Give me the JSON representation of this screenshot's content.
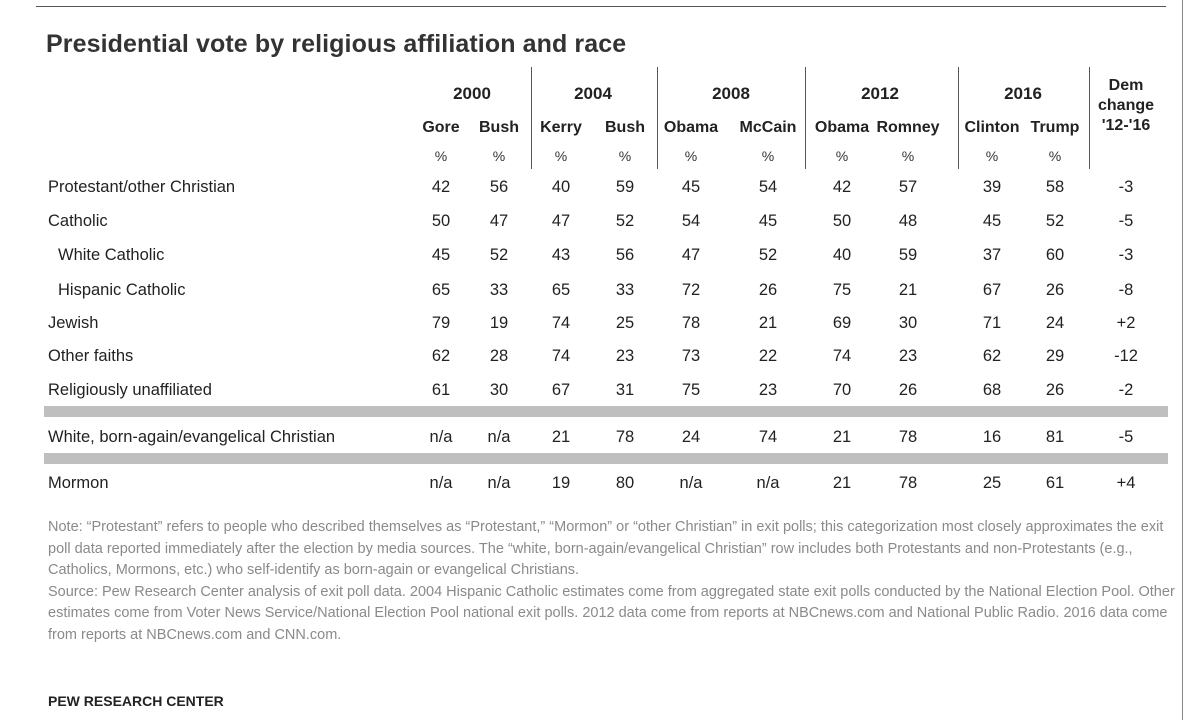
{
  "title": "Presidential vote by religious affiliation and race",
  "chart_data": {
    "type": "table",
    "title": "Presidential vote by religious affiliation and race",
    "years": [
      {
        "year": "2000",
        "candidates": [
          "Gore",
          "Bush"
        ]
      },
      {
        "year": "2004",
        "candidates": [
          "Kerry",
          "Bush"
        ]
      },
      {
        "year": "2008",
        "candidates": [
          "Obama",
          "McCain"
        ]
      },
      {
        "year": "2012",
        "candidates": [
          "Obama",
          "Romney"
        ]
      },
      {
        "year": "2016",
        "candidates": [
          "Clinton",
          "Trump"
        ]
      }
    ],
    "percent_label": "%",
    "change_header": [
      "Dem",
      "change",
      "'12-'16"
    ],
    "rows": [
      {
        "label": "Protestant/other Christian",
        "indent": false,
        "values": [
          "42",
          "56",
          "40",
          "59",
          "45",
          "54",
          "42",
          "57",
          "39",
          "58"
        ],
        "change": "-3"
      },
      {
        "label": "Catholic",
        "indent": false,
        "values": [
          "50",
          "47",
          "47",
          "52",
          "54",
          "45",
          "50",
          "48",
          "45",
          "52"
        ],
        "change": "-5"
      },
      {
        "label": "White Catholic",
        "indent": true,
        "values": [
          "45",
          "52",
          "43",
          "56",
          "47",
          "52",
          "40",
          "59",
          "37",
          "60"
        ],
        "change": "-3"
      },
      {
        "label": "Hispanic Catholic",
        "indent": true,
        "values": [
          "65",
          "33",
          "65",
          "33",
          "72",
          "26",
          "75",
          "21",
          "67",
          "26"
        ],
        "change": "-8"
      },
      {
        "label": "Jewish",
        "indent": false,
        "values": [
          "79",
          "19",
          "74",
          "25",
          "78",
          "21",
          "69",
          "30",
          "71",
          "24"
        ],
        "change": "+2"
      },
      {
        "label": "Other faiths",
        "indent": false,
        "values": [
          "62",
          "28",
          "74",
          "23",
          "73",
          "22",
          "74",
          "23",
          "62",
          "29"
        ],
        "change": "-12"
      },
      {
        "label": "Religiously unaffiliated",
        "indent": false,
        "values": [
          "61",
          "30",
          "67",
          "31",
          "75",
          "23",
          "70",
          "26",
          "68",
          "26"
        ],
        "change": "-2"
      },
      {
        "label": "White, born-again/evangelical Christian",
        "indent": false,
        "values": [
          "n/a",
          "n/a",
          "21",
          "78",
          "24",
          "74",
          "21",
          "78",
          "16",
          "81"
        ],
        "change": "-5"
      },
      {
        "label": "Mormon",
        "indent": false,
        "values": [
          "n/a",
          "n/a",
          "19",
          "80",
          "n/a",
          "n/a",
          "21",
          "78",
          "25",
          "61"
        ],
        "change": "+4"
      }
    ]
  },
  "note": "Note: “Protestant” refers to people who described themselves as “Protestant,” “Mormon” or “other Christian” in exit polls; this categorization most closely approximates the exit poll data reported immediately after the election by media sources. The “white, born-again/evangelical Christian” row includes both Protestants and non-Protestants (e.g., Catholics, Mormons, etc.) who self-identify as born-again or evangelical Christians.",
  "source": "Source: Pew Research Center analysis of exit poll data. 2004 Hispanic Catholic estimates come from aggregated state exit polls conducted by the National Election Pool. Other estimates come from Voter News Service/National Election Pool national exit polls. 2012 data come from reports at NBCnews.com and National Public Radio. 2016 data come from reports at NBCnews.com and CNN.com.",
  "footer": "PEW RESEARCH CENTER",
  "colors": {
    "band": "#bfbfbf",
    "note_text": "#8a8a8a",
    "rule": "#555555"
  }
}
